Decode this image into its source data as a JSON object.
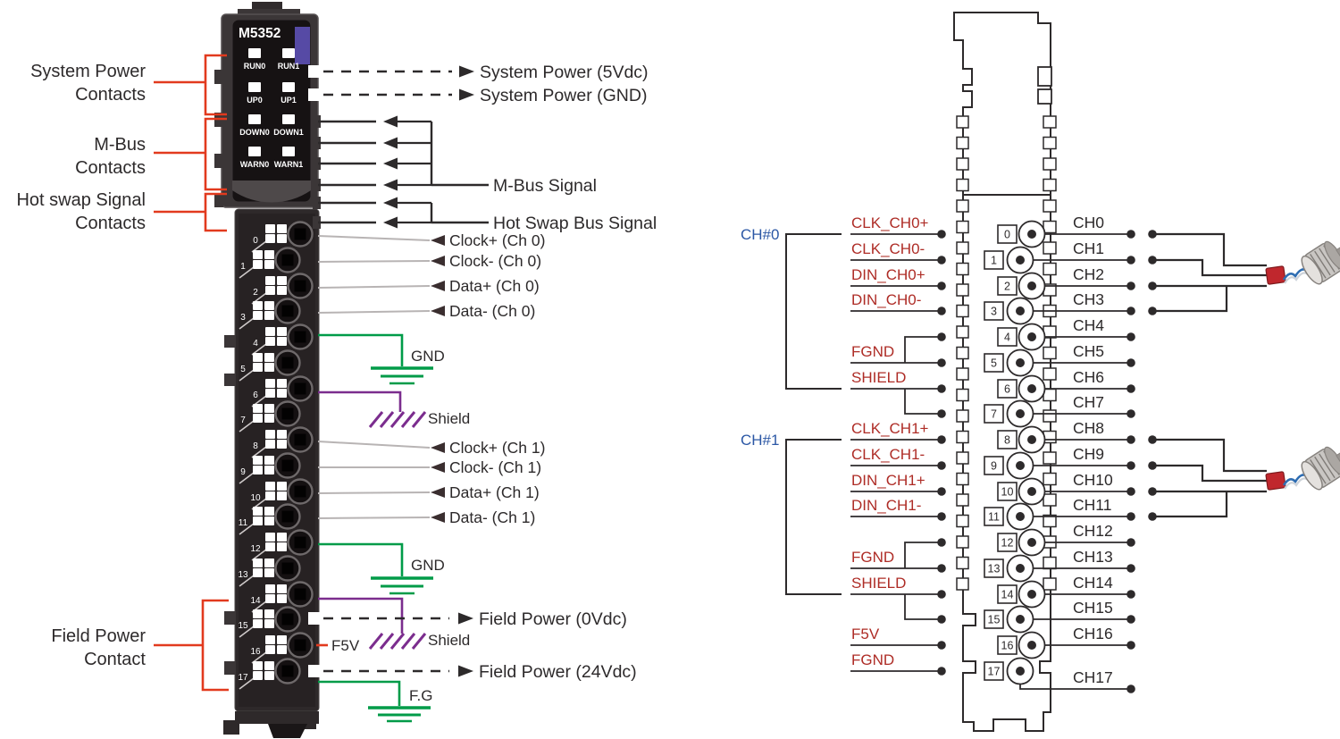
{
  "module": {
    "model": "M5352",
    "led_labels": [
      "RUN0",
      "RUN1",
      "UP0",
      "UP1",
      "DOWN0",
      "DOWN1",
      "WARN0",
      "WARN1"
    ],
    "terminal_numbers": [
      "0",
      "1",
      "2",
      "3",
      "4",
      "5",
      "6",
      "7",
      "8",
      "9",
      "10",
      "11",
      "12",
      "13",
      "14",
      "15",
      "16",
      "17"
    ]
  },
  "left_annotations": {
    "system_power_contacts": [
      "System Power",
      "Contacts"
    ],
    "mbus_contacts": [
      "M-Bus",
      "Contacts"
    ],
    "hotswap_contacts": [
      "Hot swap Signal",
      "Contacts"
    ],
    "field_power_contact": [
      "Field Power",
      "Contact"
    ]
  },
  "signals": {
    "system_power_5v": "System Power (5Vdc)",
    "system_power_gnd": "System Power (GND)",
    "mbus_signal": "M-Bus Signal",
    "hotswap_signal": "Hot Swap Bus Signal",
    "channel0": [
      "Clock+ (Ch 0)",
      "Clock- (Ch 0)",
      "Data+ (Ch 0)",
      "Data- (Ch 0)"
    ],
    "channel1": [
      "Clock+ (Ch 1)",
      "Clock- (Ch 1)",
      "Data+ (Ch 1)",
      "Data- (Ch 1)"
    ],
    "gnd": "GND",
    "shield": "Shield",
    "f5v": "F5V",
    "field_power_0v": "Field Power (0Vdc)",
    "field_power_24v": "Field Power (24Vdc)",
    "fg": "F.G"
  },
  "connector": {
    "groups": [
      {
        "label": "CH#0",
        "signals": [
          "CLK_CH0+",
          "CLK_CH0-",
          "DIN_CH0+",
          "DIN_CH0-",
          "FGND",
          "SHIELD"
        ]
      },
      {
        "label": "CH#1",
        "signals": [
          "CLK_CH1+",
          "CLK_CH1-",
          "DIN_CH1+",
          "DIN_CH1-",
          "FGND",
          "SHIELD"
        ]
      }
    ],
    "power_signals": [
      "F5V",
      "FGND"
    ],
    "pin_numbers": [
      "0",
      "1",
      "2",
      "3",
      "4",
      "5",
      "6",
      "7",
      "8",
      "9",
      "10",
      "11",
      "12",
      "13",
      "14",
      "15",
      "16",
      "17"
    ],
    "channel_labels": [
      "CH0",
      "CH1",
      "CH2",
      "CH3",
      "CH4",
      "CH5",
      "CH6",
      "CH7",
      "CH8",
      "CH9",
      "CH10",
      "CH11",
      "CH12",
      "CH13",
      "CH14",
      "CH15",
      "CH16",
      "CH17"
    ]
  },
  "colors": {
    "accent_red": "#e23a1e",
    "signal_red": "#ae2c26",
    "group_blue": "#2b57a5",
    "ground_green": "#009b48",
    "shield_purple": "#7b2d8e",
    "line_dark": "#2d2a2b",
    "line_gray": "#b8b4b4",
    "module_purple": "#564aa5"
  }
}
